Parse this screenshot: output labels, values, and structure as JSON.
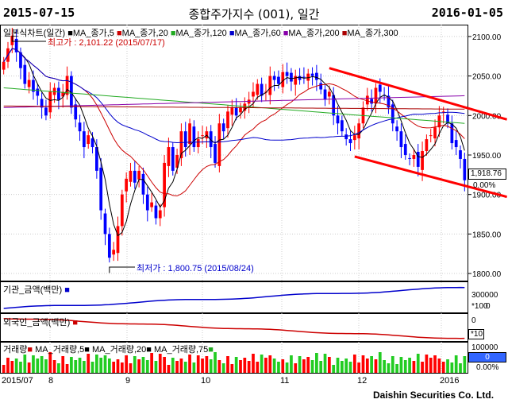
{
  "header": {
    "start_date": "2015-07-15",
    "title": "종합주가지수 (001), 일간",
    "end_date": "2016-01-05"
  },
  "price_legend": {
    "chart_name": "일본식차트(일간)",
    "items": [
      {
        "label": "MA_종가,5",
        "color": "#000000"
      },
      {
        "label": "MA_종가,20",
        "color": "#cc0000"
      },
      {
        "label": "MA_종가,120",
        "color": "#22aa22"
      },
      {
        "label": "MA_종가,60",
        "color": "#0000cc"
      },
      {
        "label": "MA_종가,200",
        "color": "#8800aa"
      },
      {
        "label": "MA_종가,300",
        "color": "#aa0000"
      }
    ]
  },
  "annotations": {
    "high": "최고가 : 2,101.22 (2015/07/17)",
    "low": "최저가 : 1,800.75 (2015/08/24)",
    "last_price": "1,918.76",
    "last_change": "0.00%"
  },
  "inst_panel": {
    "label": "기관_금액(백만)",
    "ticks": [
      "300000",
      "0"
    ],
    "unit": "*100"
  },
  "foreign_panel": {
    "label": "외국인_금액(백만)",
    "ticks": [
      "0"
    ],
    "unit": "*10"
  },
  "volume_panel": {
    "legend": [
      {
        "label": "거래량",
        "color": "#cc0000"
      },
      {
        "label": "MA_거래량,5",
        "color": "#000000"
      },
      {
        "label": "MA_거래량,20",
        "color": "#000000"
      },
      {
        "label": "MA_거래량,75",
        "color": "#22aa22"
      }
    ],
    "ticks": [
      "100000"
    ],
    "last_value": "0",
    "last_change": "0.00%"
  },
  "x_axis": {
    "labels": [
      "2015/07",
      "8",
      "9",
      "10",
      "11",
      "12",
      "2016"
    ]
  },
  "footer": "Daishin Securities Co. Ltd.",
  "colors": {
    "up": "#ff0000",
    "down": "#0000ff",
    "trendline": "#ff0000"
  },
  "chart_data": {
    "type": "candlestick",
    "y_ticks": [
      2100,
      2050,
      2000,
      1950,
      1900,
      1850,
      1800
    ],
    "ylim": [
      1790,
      2115
    ],
    "close": [
      2068,
      2085,
      2101,
      2080,
      2060,
      2040,
      2045,
      2030,
      2025,
      2010,
      2000,
      2030,
      2035,
      2020,
      2030,
      2050,
      2010,
      1995,
      1980,
      1960,
      1975,
      1960,
      1930,
      1880,
      1850,
      1820,
      1830,
      1860,
      1900,
      1920,
      1930,
      1915,
      1930,
      1900,
      1880,
      1890,
      1870,
      1880,
      1940,
      1960,
      1930,
      1950,
      1980,
      1960,
      1990,
      1960,
      1970,
      1975,
      1980,
      1960,
      1940,
      1990,
      1980,
      2005,
      2010,
      2000,
      2010,
      2015,
      2020,
      2030,
      2040,
      2025,
      2030,
      2050,
      2045,
      2040,
      2055,
      2050,
      2043,
      2050,
      2045,
      2048,
      2053,
      2050,
      2045,
      2033,
      2020,
      2030,
      2000,
      1990,
      1980,
      1970,
      1965,
      1975,
      1990,
      2010,
      2025,
      2015,
      2035,
      2030,
      2025,
      2010,
      1990,
      1980,
      1960,
      1950,
      1945,
      1950,
      1935,
      1955,
      1970,
      1975,
      1985,
      2000,
      2005,
      1990,
      1965,
      1960,
      1945,
      1918
    ],
    "trendlines": [
      {
        "from": [
          77,
          2060
        ],
        "to": [
          119,
          1995
        ]
      },
      {
        "from": [
          83,
          1948
        ],
        "to": [
          119,
          1897
        ]
      }
    ]
  }
}
